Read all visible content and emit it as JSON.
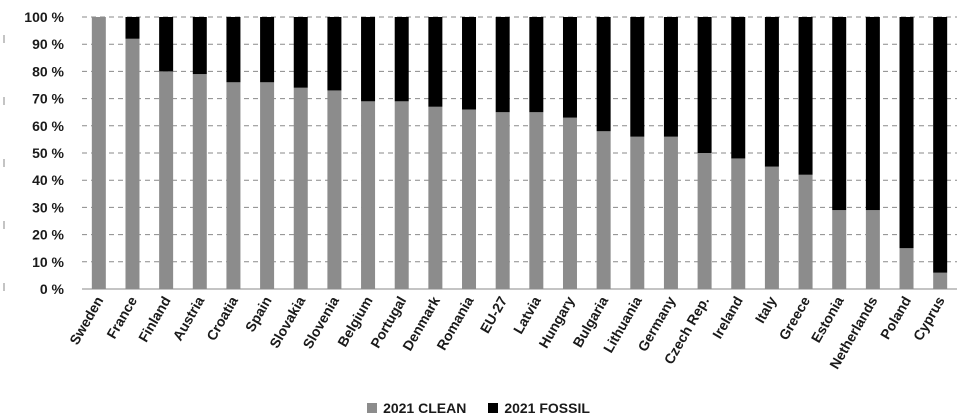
{
  "chart_data": {
    "type": "bar",
    "stacked": true,
    "percent_stacked": true,
    "categories": [
      "Sweden",
      "France",
      "Finland",
      "Austria",
      "Croatia",
      "Spain",
      "Slovakia",
      "Slovenia",
      "Belgium",
      "Portugal",
      "Denmark",
      "Romania",
      "EU-27",
      "Latvia",
      "Hungary",
      "Bulgaria",
      "Lithuania",
      "Germany",
      "Czech Rep.",
      "Ireland",
      "Italy",
      "Greece",
      "Estonia",
      "Netherlands",
      "Poland",
      "Cyprus"
    ],
    "series": [
      {
        "name": "2021 CLEAN",
        "color": "#8c8c8c",
        "values": [
          100,
          92,
          80,
          79,
          76,
          76,
          74,
          73,
          69,
          69,
          67,
          66,
          65,
          65,
          63,
          58,
          56,
          56,
          50,
          48,
          45,
          42,
          29,
          29,
          15,
          6
        ]
      },
      {
        "name": "2021 FOSSIL",
        "color": "#000000",
        "values": [
          0,
          8,
          20,
          21,
          24,
          24,
          26,
          27,
          31,
          31,
          33,
          34,
          35,
          35,
          37,
          42,
          44,
          44,
          50,
          52,
          55,
          58,
          71,
          71,
          85,
          94
        ]
      }
    ],
    "yticks": [
      "0 %",
      "10 %",
      "20 %",
      "30 %",
      "40 %",
      "50 %",
      "60 %",
      "70 %",
      "80 %",
      "90 %",
      "100 %"
    ],
    "ylim": [
      0,
      100
    ],
    "grid": "horizontal dashed",
    "legend_position": "bottom-center",
    "title": "",
    "xlabel": "",
    "ylabel": ""
  }
}
